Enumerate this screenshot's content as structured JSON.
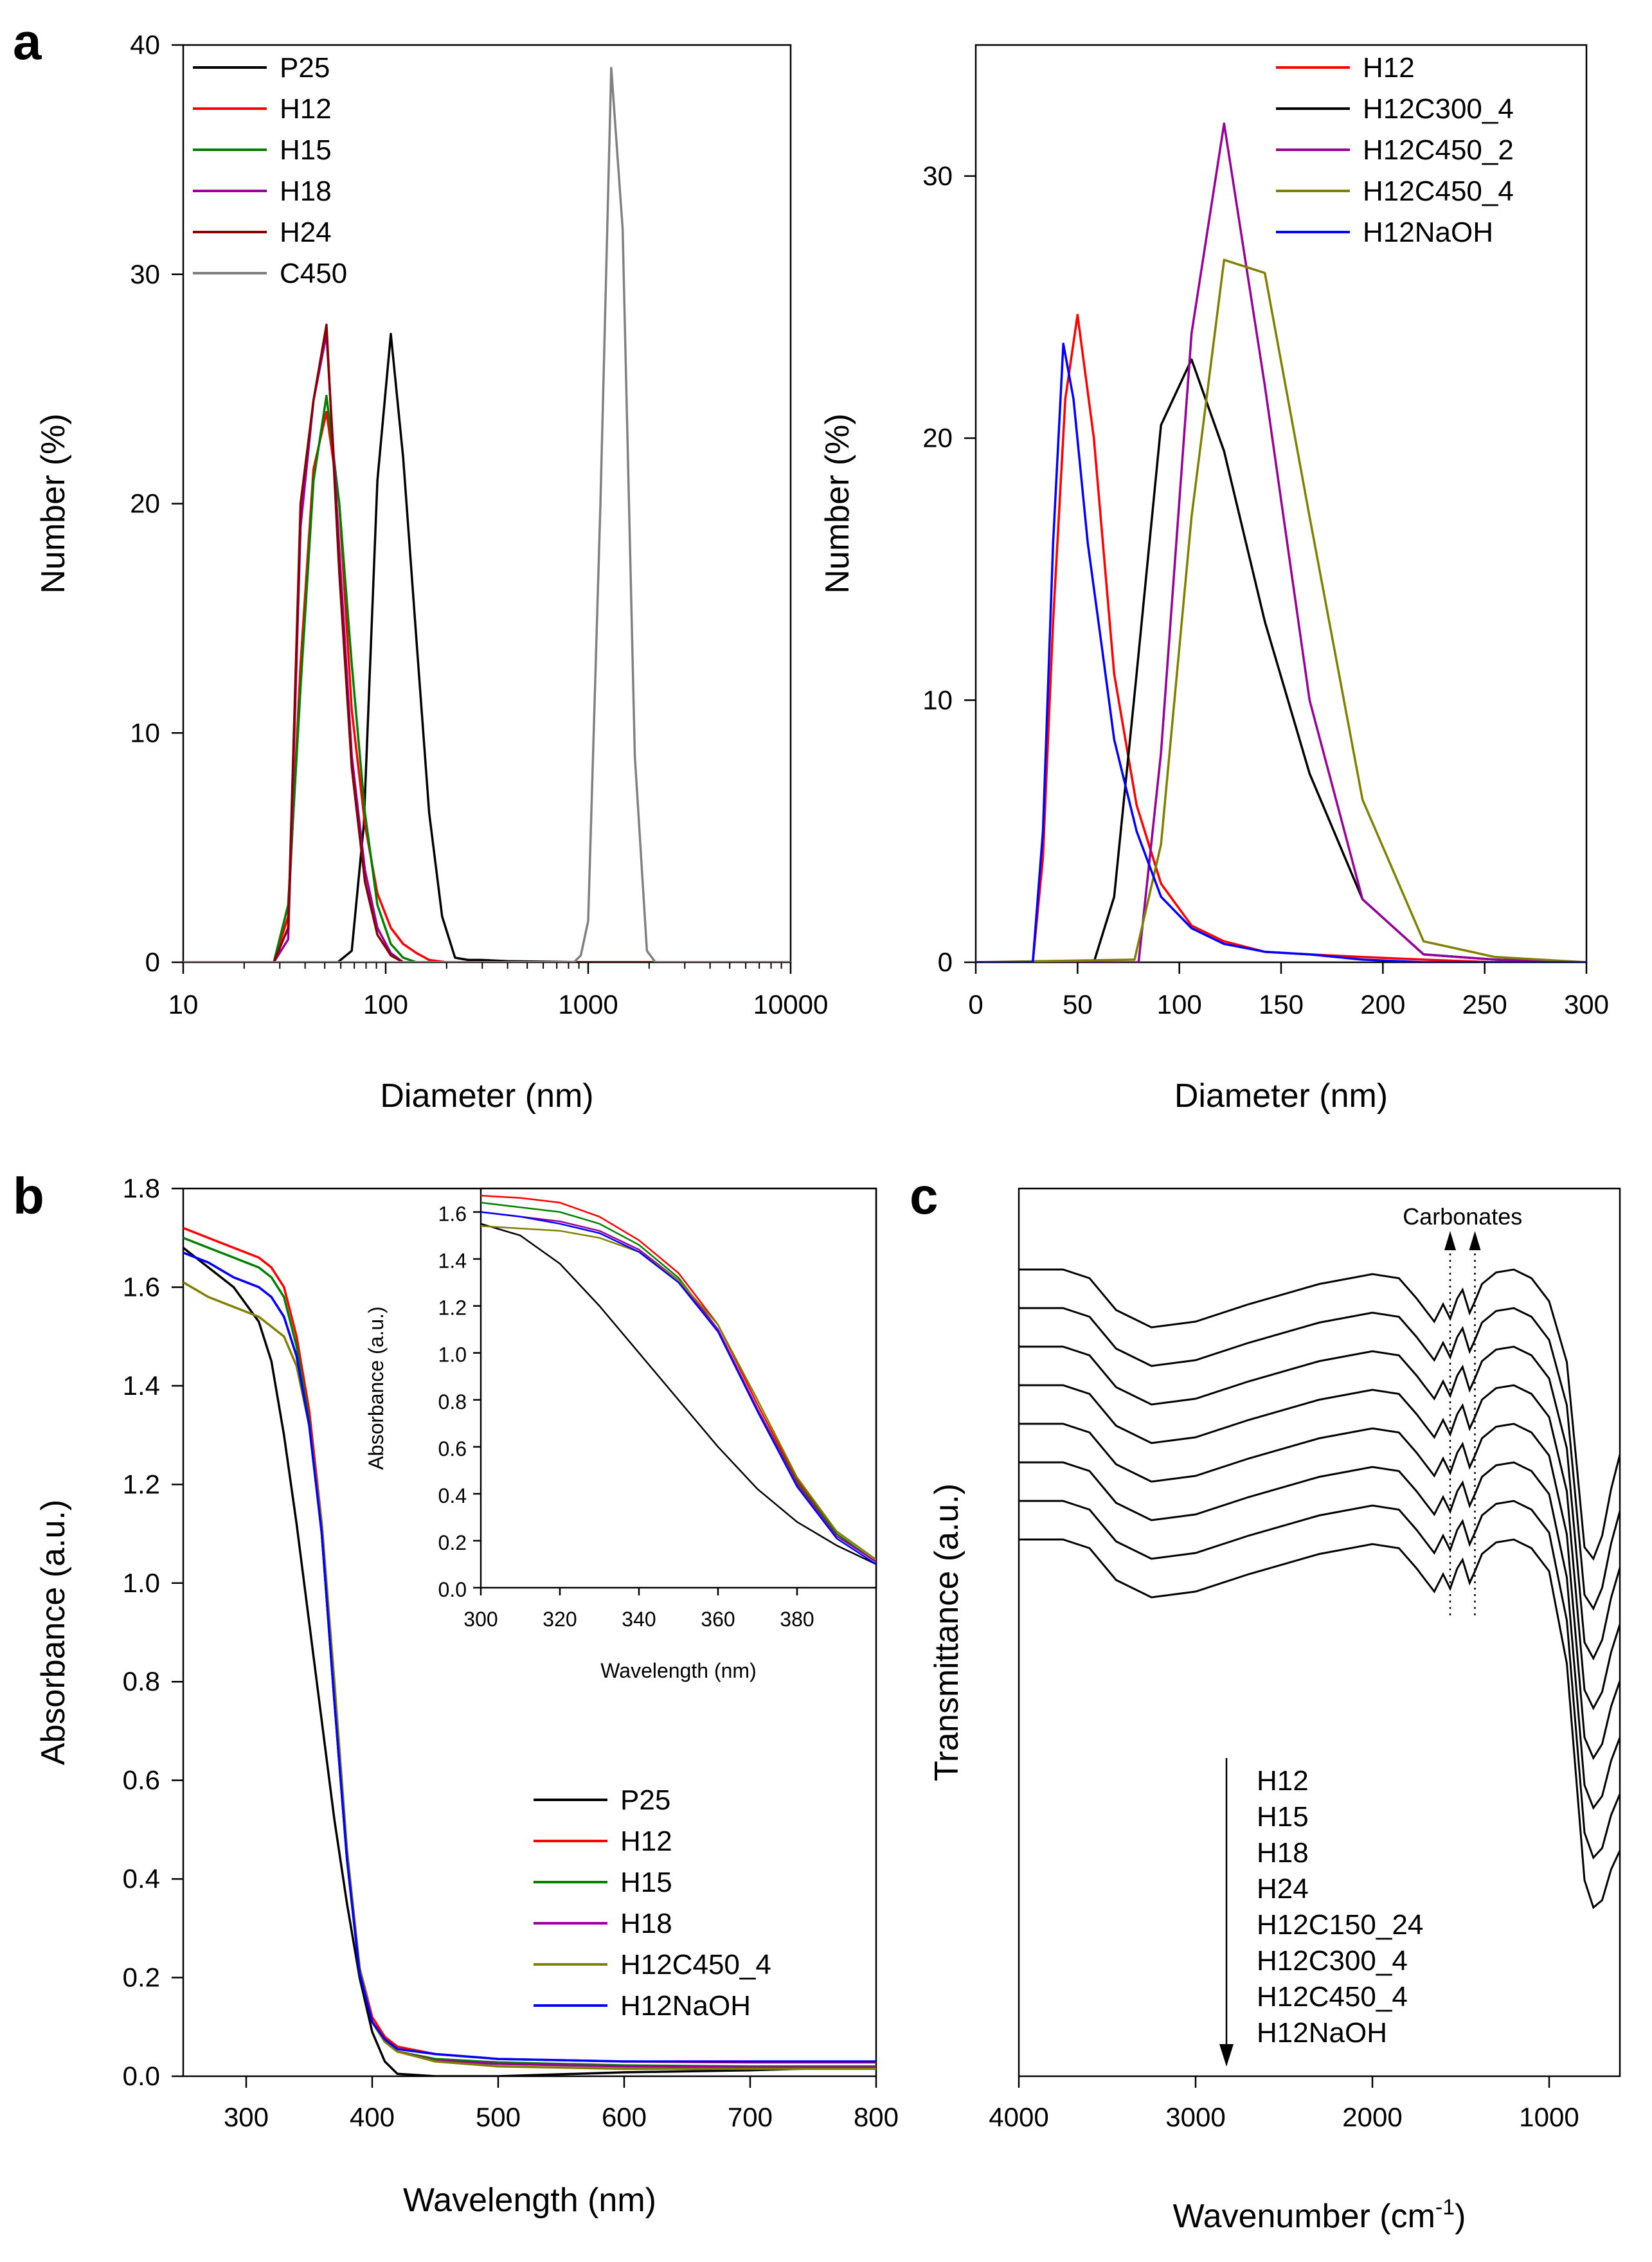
{
  "panels": {
    "a": "a",
    "b": "b",
    "c": "c"
  },
  "chart_data": [
    {
      "id": "a-left",
      "type": "line",
      "title": "",
      "xlabel": "Diameter (nm)",
      "ylabel": "Number (%)",
      "xscale": "log",
      "xlim": [
        10,
        10000
      ],
      "ylim": [
        0,
        40
      ],
      "xticks": [
        "10",
        "100",
        "1000",
        "10000"
      ],
      "yticks": [
        "0",
        "10",
        "20",
        "30",
        "40"
      ],
      "legend_position": "top-left",
      "series": [
        {
          "name": "P25",
          "color": "#000000",
          "x": [
            10,
            58,
            68,
            78,
            91,
            106,
            122,
            142,
            164,
            190,
            220,
            255,
            295,
            400,
            1000,
            10000
          ],
          "y": [
            0,
            0,
            0.5,
            6,
            21,
            27.4,
            22,
            14,
            6.5,
            2,
            0.2,
            0.1,
            0.1,
            0.05,
            0,
            0
          ]
        },
        {
          "name": "H12",
          "color": "#ff0000",
          "x": [
            10,
            28,
            33,
            38,
            44,
            51,
            59,
            68,
            79,
            91,
            106,
            122,
            142,
            164,
            200,
            10000
          ],
          "y": [
            0,
            0,
            2,
            13,
            21.5,
            24,
            20,
            11,
            6,
            3,
            1.5,
            0.8,
            0.4,
            0.1,
            0,
            0
          ]
        },
        {
          "name": "H15",
          "color": "#008000",
          "x": [
            10,
            28,
            33,
            38,
            44,
            51,
            59,
            68,
            79,
            91,
            106,
            122,
            142,
            10000
          ],
          "y": [
            0,
            0,
            2.5,
            12,
            21,
            24.7,
            20,
            13,
            6.5,
            2.5,
            0.8,
            0.2,
            0,
            0
          ]
        },
        {
          "name": "H18",
          "color": "#990099",
          "x": [
            10,
            28,
            33,
            38,
            44,
            51,
            59,
            68,
            79,
            91,
            106,
            122,
            10000
          ],
          "y": [
            0,
            0,
            1,
            19,
            24.5,
            27.4,
            18,
            9,
            4,
            1.5,
            0.4,
            0,
            0
          ]
        },
        {
          "name": "H24",
          "color": "#880000",
          "x": [
            10,
            28,
            33,
            38,
            44,
            51,
            59,
            68,
            79,
            91,
            106,
            122,
            10000
          ],
          "y": [
            0,
            0,
            1.5,
            20,
            24.5,
            27.8,
            17,
            8.5,
            3.5,
            1.2,
            0.3,
            0,
            0
          ]
        },
        {
          "name": "C450",
          "color": "#808080",
          "x": [
            10,
            850,
            920,
            1000,
            1150,
            1300,
            1480,
            1700,
            1950,
            2150,
            10000
          ],
          "y": [
            0,
            0,
            0.3,
            1.8,
            20,
            39,
            32,
            9,
            0.5,
            0,
            0
          ]
        }
      ]
    },
    {
      "id": "a-right",
      "type": "line",
      "title": "",
      "xlabel": "Diameter (nm)",
      "ylabel": "Number (%)",
      "xlim": [
        0,
        300
      ],
      "ylim": [
        0,
        35
      ],
      "xticks": [
        "0",
        "50",
        "100",
        "150",
        "200",
        "250",
        "300"
      ],
      "yticks": [
        "0",
        "10",
        "20",
        "30"
      ],
      "legend_position": "top-right",
      "series": [
        {
          "name": "H12",
          "color": "#ff0000",
          "x": [
            0,
            28,
            33,
            38,
            44,
            50,
            58,
            68,
            79,
            91,
            106,
            122,
            142,
            164,
            190,
            220,
            255,
            300
          ],
          "y": [
            0,
            0,
            4,
            13,
            21.5,
            24.7,
            20,
            11,
            6,
            3,
            1.4,
            0.8,
            0.4,
            0.3,
            0.2,
            0.1,
            0,
            0
          ]
        },
        {
          "name": "H12C300_4",
          "color": "#000000",
          "x": [
            0,
            58,
            68,
            79,
            91,
            106,
            122,
            142,
            164,
            190,
            220,
            255,
            300
          ],
          "y": [
            0,
            0,
            2.5,
            11,
            20.5,
            23,
            19.5,
            13,
            7.2,
            2.4,
            0.3,
            0.1,
            0
          ]
        },
        {
          "name": "H12C450_2",
          "color": "#990099",
          "x": [
            0,
            80,
            91,
            106,
            122,
            142,
            164,
            190,
            220,
            255,
            300
          ],
          "y": [
            0,
            0,
            8,
            24,
            32,
            22,
            10,
            2.4,
            0.3,
            0.1,
            0
          ]
        },
        {
          "name": "H12C450_4",
          "color": "#808000",
          "x": [
            0,
            78,
            91,
            106,
            122,
            142,
            164,
            190,
            220,
            255,
            300
          ],
          "y": [
            0,
            0.1,
            4.5,
            17,
            26.8,
            26.3,
            17,
            6.2,
            0.8,
            0.2,
            0
          ]
        },
        {
          "name": "H12NaOH",
          "color": "#0000ff",
          "x": [
            0,
            28,
            33,
            38,
            43,
            48,
            55,
            62,
            68,
            79,
            91,
            106,
            122,
            142,
            164,
            190,
            220,
            300
          ],
          "y": [
            0,
            0,
            5,
            16,
            23.6,
            21.5,
            16,
            12,
            8.5,
            5,
            2.5,
            1.3,
            0.7,
            0.4,
            0.3,
            0.1,
            0,
            0
          ]
        }
      ]
    },
    {
      "id": "b",
      "type": "line",
      "title": "",
      "xlabel": "Wavelength (nm)",
      "ylabel": "Absorbance (a.u.)",
      "xlim": [
        250,
        800
      ],
      "ylim": [
        0,
        1.8
      ],
      "xticks": [
        "300",
        "400",
        "500",
        "600",
        "700",
        "800"
      ],
      "yticks": [
        "0.0",
        "0.2",
        "0.4",
        "0.6",
        "0.8",
        "1.0",
        "1.2",
        "1.4",
        "1.6",
        "1.8"
      ],
      "legend_position": "bottom-right",
      "series": [
        {
          "name": "P25",
          "color": "#000000",
          "x": [
            250,
            270,
            290,
            310,
            320,
            330,
            340,
            350,
            360,
            370,
            380,
            390,
            400,
            410,
            420,
            450,
            500,
            600,
            700,
            800
          ],
          "y": [
            1.68,
            1.64,
            1.6,
            1.53,
            1.45,
            1.3,
            1.12,
            0.92,
            0.72,
            0.52,
            0.35,
            0.2,
            0.09,
            0.03,
            0.005,
            0.0,
            0.0,
            0.008,
            0.012,
            0.02
          ]
        },
        {
          "name": "H12",
          "color": "#ff0000",
          "x": [
            250,
            270,
            290,
            310,
            320,
            330,
            340,
            350,
            360,
            370,
            380,
            390,
            400,
            410,
            420,
            450,
            500,
            600,
            700,
            800
          ],
          "y": [
            1.72,
            1.7,
            1.68,
            1.66,
            1.64,
            1.6,
            1.5,
            1.35,
            1.12,
            0.78,
            0.45,
            0.22,
            0.12,
            0.08,
            0.06,
            0.045,
            0.035,
            0.03,
            0.028,
            0.028
          ]
        },
        {
          "name": "H15",
          "color": "#008000",
          "x": [
            250,
            270,
            290,
            310,
            320,
            330,
            340,
            350,
            360,
            370,
            380,
            390,
            400,
            410,
            420,
            450,
            500,
            600,
            700,
            800
          ],
          "y": [
            1.7,
            1.68,
            1.66,
            1.64,
            1.62,
            1.58,
            1.48,
            1.33,
            1.1,
            0.76,
            0.44,
            0.21,
            0.11,
            0.07,
            0.05,
            0.035,
            0.028,
            0.022,
            0.02,
            0.02
          ]
        },
        {
          "name": "H18",
          "color": "#990099",
          "x": [
            250,
            270,
            290,
            310,
            320,
            330,
            340,
            350,
            360,
            370,
            380,
            390,
            400,
            410,
            420,
            450,
            500,
            600,
            700,
            800
          ],
          "y": [
            1.67,
            1.65,
            1.62,
            1.6,
            1.58,
            1.54,
            1.46,
            1.32,
            1.1,
            0.76,
            0.44,
            0.21,
            0.11,
            0.07,
            0.05,
            0.032,
            0.025,
            0.02,
            0.018,
            0.018
          ]
        },
        {
          "name": "H12C450_4",
          "color": "#808000",
          "x": [
            250,
            270,
            290,
            310,
            320,
            330,
            340,
            350,
            360,
            370,
            380,
            390,
            400,
            410,
            420,
            450,
            500,
            600,
            700,
            800
          ],
          "y": [
            1.61,
            1.58,
            1.56,
            1.54,
            1.52,
            1.5,
            1.44,
            1.32,
            1.12,
            0.8,
            0.46,
            0.22,
            0.11,
            0.07,
            0.05,
            0.03,
            0.02,
            0.015,
            0.015,
            0.015
          ]
        },
        {
          "name": "H12NaOH",
          "color": "#0000ff",
          "x": [
            250,
            270,
            290,
            310,
            320,
            330,
            340,
            350,
            360,
            370,
            380,
            390,
            400,
            410,
            420,
            450,
            500,
            600,
            700,
            800
          ],
          "y": [
            1.67,
            1.65,
            1.62,
            1.6,
            1.58,
            1.54,
            1.46,
            1.32,
            1.1,
            0.76,
            0.44,
            0.21,
            0.11,
            0.075,
            0.055,
            0.045,
            0.035,
            0.03,
            0.03,
            0.03
          ]
        }
      ],
      "inset": {
        "xlabel": "Wavelength (nm)",
        "ylabel": "Absorbance (a.u.)",
        "xlim": [
          300,
          400
        ],
        "ylim": [
          0,
          1.7
        ],
        "xticks": [
          "300",
          "320",
          "340",
          "360",
          "380"
        ],
        "yticks": [
          "0.0",
          "0.2",
          "0.4",
          "0.6",
          "0.8",
          "1.0",
          "1.2",
          "1.4",
          "1.6"
        ],
        "series": [
          {
            "name": "P25",
            "color": "#000000",
            "x": [
              300,
              310,
              320,
              330,
              340,
              350,
              360,
              370,
              380,
              390,
              400
            ],
            "y": [
              1.55,
              1.5,
              1.38,
              1.2,
              1.0,
              0.8,
              0.6,
              0.42,
              0.28,
              0.18,
              0.1
            ]
          },
          {
            "name": "H12",
            "color": "#ff0000",
            "x": [
              300,
              310,
              320,
              330,
              340,
              350,
              360,
              370,
              380,
              390,
              400
            ],
            "y": [
              1.67,
              1.66,
              1.64,
              1.58,
              1.48,
              1.34,
              1.12,
              0.78,
              0.46,
              0.24,
              0.12
            ]
          },
          {
            "name": "H15",
            "color": "#008000",
            "x": [
              300,
              310,
              320,
              330,
              340,
              350,
              360,
              370,
              380,
              390,
              400
            ],
            "y": [
              1.64,
              1.62,
              1.6,
              1.55,
              1.46,
              1.32,
              1.1,
              0.76,
              0.45,
              0.23,
              0.11
            ]
          },
          {
            "name": "H18",
            "color": "#990099",
            "x": [
              300,
              310,
              320,
              330,
              340,
              350,
              360,
              370,
              380,
              390,
              400
            ],
            "y": [
              1.6,
              1.58,
              1.56,
              1.52,
              1.44,
              1.31,
              1.1,
              0.76,
              0.44,
              0.22,
              0.11
            ]
          },
          {
            "name": "H12C450_4",
            "color": "#808000",
            "x": [
              300,
              310,
              320,
              330,
              340,
              350,
              360,
              370,
              380,
              390,
              400
            ],
            "y": [
              1.54,
              1.53,
              1.52,
              1.49,
              1.43,
              1.31,
              1.12,
              0.8,
              0.47,
              0.24,
              0.12
            ]
          },
          {
            "name": "H12NaOH",
            "color": "#0000ff",
            "x": [
              300,
              310,
              320,
              330,
              340,
              350,
              360,
              370,
              380,
              390,
              400
            ],
            "y": [
              1.6,
              1.58,
              1.55,
              1.51,
              1.43,
              1.3,
              1.09,
              0.75,
              0.43,
              0.21,
              0.1
            ]
          }
        ]
      }
    },
    {
      "id": "c",
      "type": "line",
      "title": "",
      "xlabel": "Wavenumber (cm",
      "xlabel_sup": "-1",
      "xlabel_close": ")",
      "ylabel": "Transmittance (a.u.)",
      "xlim": [
        4000,
        600
      ],
      "xticks": [
        "4000",
        "3000",
        "2000",
        "1000"
      ],
      "annotation": "Carbonates",
      "legend_position": "bottom-center",
      "legend_arrow": "down",
      "spectra_order": [
        "H12",
        "H15",
        "H18",
        "H24",
        "H12C150_24",
        "H12C300_4",
        "H12C450_4",
        "H12NaOH"
      ],
      "spectrum_offsets": [
        0,
        1,
        2,
        3,
        4,
        5,
        6,
        7
      ],
      "spectrum_x": [
        4000,
        3750,
        3600,
        3450,
        3250,
        3000,
        2700,
        2300,
        2000,
        1850,
        1750,
        1700,
        1650,
        1600,
        1560,
        1520,
        1490,
        1450,
        1420,
        1380,
        1300,
        1200,
        1100,
        1000,
        900,
        850,
        800,
        750,
        700,
        650,
        600
      ],
      "spectrum_y": [
        0.0,
        0.0,
        0.15,
        0.7,
        1.0,
        0.9,
        0.6,
        0.25,
        0.08,
        0.15,
        0.5,
        0.7,
        0.9,
        0.6,
        0.85,
        0.5,
        0.35,
        0.75,
        0.55,
        0.25,
        0.05,
        0.0,
        0.15,
        0.55,
        1.6,
        3.2,
        4.8,
        5.0,
        4.6,
        3.8,
        3.2
      ]
    }
  ]
}
